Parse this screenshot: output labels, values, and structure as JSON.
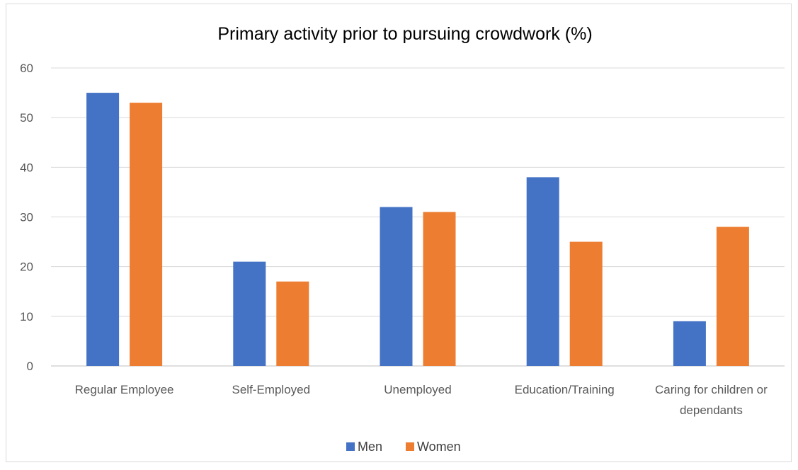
{
  "chart_data": {
    "type": "bar",
    "title": "Primary activity prior to pursuing crowdwork (%)",
    "categories": [
      "Regular Employee",
      "Self-Employed",
      "Unemployed",
      "Education/Training",
      "Caring for children or dependants"
    ],
    "category_lines": [
      [
        "Regular Employee"
      ],
      [
        "Self-Employed"
      ],
      [
        "Unemployed"
      ],
      [
        "Education/Training"
      ],
      [
        "Caring for children or",
        "dependants"
      ]
    ],
    "series": [
      {
        "name": "Men",
        "values": [
          55,
          21,
          32,
          38,
          9
        ],
        "color": "#4472c4"
      },
      {
        "name": "Women",
        "values": [
          53,
          17,
          31,
          25,
          28
        ],
        "color": "#ed7d31"
      }
    ],
    "ylim": [
      0,
      60
    ],
    "yticks": [
      0,
      10,
      20,
      30,
      40,
      50,
      60
    ],
    "grid": true,
    "legend": "bottom-center",
    "xlabel": "",
    "ylabel": ""
  }
}
